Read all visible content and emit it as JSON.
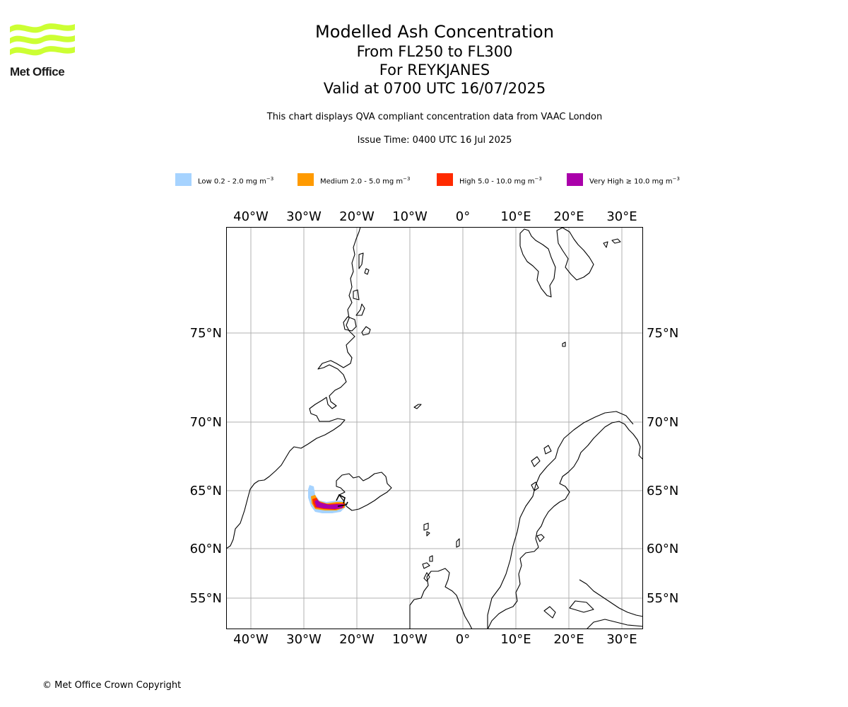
{
  "header": {
    "title": "Modelled Ash Concentration",
    "levels": "From FL250 to FL300",
    "volcano": "For REYKJANES",
    "valid": "Valid at 0700 UTC 16/07/2025",
    "description": "This chart displays QVA compliant concentration data from VAAC London",
    "issue_time": "Issue Time: 0400 UTC 16 Jul 2025"
  },
  "logo": {
    "text": "Met Office",
    "color": "#ccff33"
  },
  "legend": [
    {
      "label": "Low 0.2 - 2.0 mg m",
      "unit_sup": "−3",
      "color": "#a6d3ff"
    },
    {
      "label": "Medium 2.0 - 5.0 mg m",
      "unit_sup": "−3",
      "color": "#ff9a00"
    },
    {
      "label": "High 5.0 - 10.0 mg m",
      "unit_sup": "−3",
      "color": "#ff2a00"
    },
    {
      "label": "Very High  ≥  10.0 mg m",
      "unit_sup": "−3",
      "color": "#aa00aa"
    }
  ],
  "map": {
    "lon_ticks": [
      "40°W",
      "30°W",
      "20°W",
      "10°W",
      "0°",
      "10°E",
      "20°E",
      "30°E"
    ],
    "lat_ticks": [
      "75°N",
      "70°N",
      "65°N",
      "60°N",
      "55°N"
    ],
    "gridline_color": "#b0b0b0",
    "coast_color": "#000000"
  },
  "footer": {
    "copyright": "© Met Office Crown Copyright"
  }
}
